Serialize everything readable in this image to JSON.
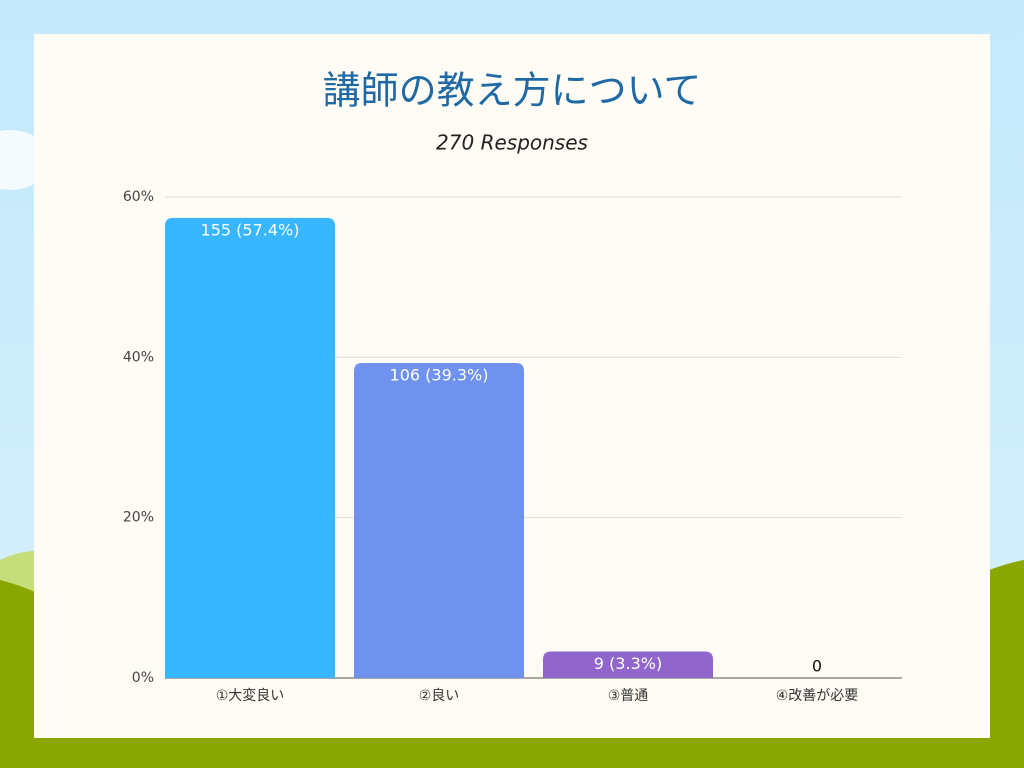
{
  "chart_data": {
    "type": "bar",
    "title": "講師の教え方について",
    "subtitle": "270 Responses",
    "categories": [
      "①大変良い",
      "②良い",
      "③普通",
      "④改善が必要"
    ],
    "values": [
      57.4,
      39.3,
      3.3,
      0
    ],
    "value_labels": [
      "155 (57.4%)",
      "106 (39.3%)",
      "9 (3.3%)",
      "0"
    ],
    "colors": [
      "#38b6ff",
      "#6f92ef",
      "#9166cc",
      "#9166cc"
    ],
    "ylim": [
      0,
      60
    ],
    "yticks": [
      {
        "value": 0,
        "label": "0%"
      },
      {
        "value": 20,
        "label": "20%"
      },
      {
        "value": 40,
        "label": "40%"
      },
      {
        "value": 60,
        "label": "60%"
      }
    ],
    "grid": true
  }
}
